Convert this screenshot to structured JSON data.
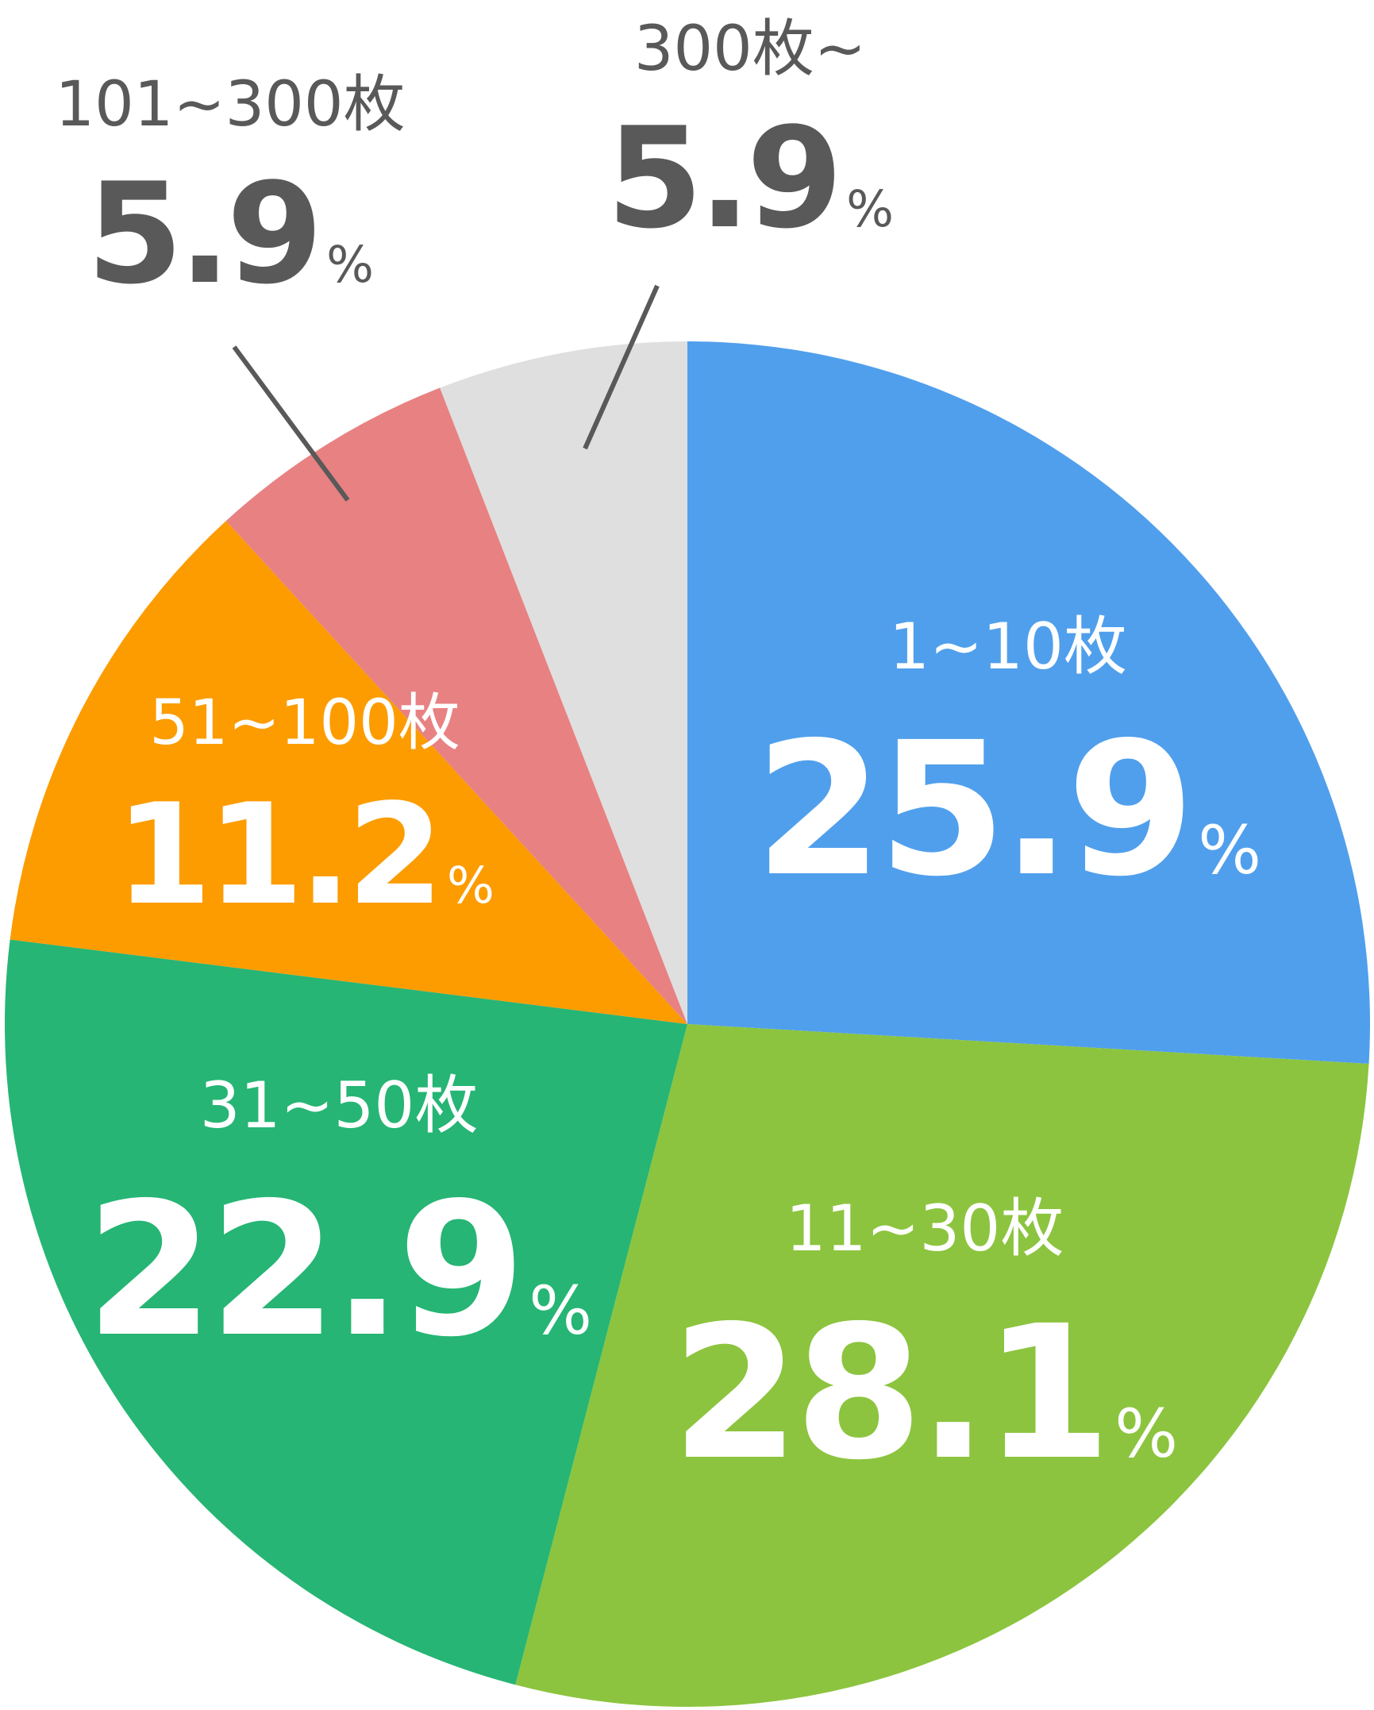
{
  "chart_data": {
    "type": "pie",
    "start": "12 o'clock",
    "direction": "clockwise",
    "unit": "%",
    "slices": [
      {
        "label": "1~10枚",
        "value": 25.9,
        "value_text": "25.9",
        "color": "#509FEC",
        "text_color": "#FFFFFF"
      },
      {
        "label": "11~30枚",
        "value": 28.1,
        "value_text": "28.1",
        "color": "#8CC43F",
        "text_color": "#FFFFFF"
      },
      {
        "label": "31~50枚",
        "value": 22.9,
        "value_text": "22.9",
        "color": "#26B574",
        "text_color": "#FFFFFF"
      },
      {
        "label": "51~100枚",
        "value": 11.2,
        "value_text": "11.2",
        "color": "#FC9C00",
        "text_color": "#FFFFFF"
      },
      {
        "label": "101~300枚",
        "value": 5.9,
        "value_text": "5.9",
        "color": "#E88182",
        "text_color": "#595959"
      },
      {
        "label": "300枚~",
        "value": 5.9,
        "value_text": "5.9",
        "color": "#DFDFDF",
        "text_color": "#595959"
      }
    ]
  }
}
